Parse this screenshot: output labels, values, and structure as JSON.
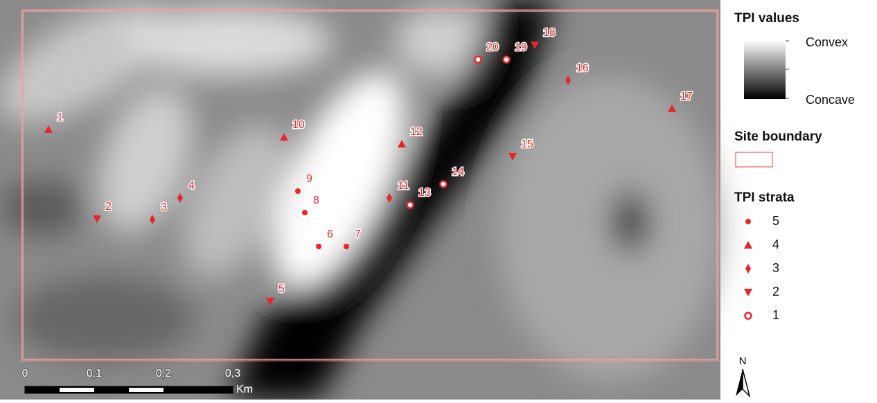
{
  "legend": {
    "tpi_values": {
      "title": "TPI values",
      "high": "Convex",
      "low": "Concave"
    },
    "site_boundary": {
      "title": "Site boundary"
    },
    "strata": {
      "title": "TPI strata",
      "items": [
        "5",
        "4",
        "3",
        "2",
        "1"
      ]
    }
  },
  "sites": [
    {
      "label": "1",
      "stratum": 4
    },
    {
      "label": "2",
      "stratum": 2
    },
    {
      "label": "3",
      "stratum": 3
    },
    {
      "label": "4",
      "stratum": 3
    },
    {
      "label": "5",
      "stratum": 2
    },
    {
      "label": "6",
      "stratum": 5
    },
    {
      "label": "7",
      "stratum": 5
    },
    {
      "label": "8",
      "stratum": 5
    },
    {
      "label": "9",
      "stratum": 5
    },
    {
      "label": "10",
      "stratum": 4
    },
    {
      "label": "11",
      "stratum": 3
    },
    {
      "label": "12",
      "stratum": 4
    },
    {
      "label": "13",
      "stratum": 1
    },
    {
      "label": "14",
      "stratum": 1
    },
    {
      "label": "15",
      "stratum": 2
    },
    {
      "label": "16",
      "stratum": 3
    },
    {
      "label": "17",
      "stratum": 4
    },
    {
      "label": "18",
      "stratum": 2
    },
    {
      "label": "19",
      "stratum": 1
    },
    {
      "label": "20",
      "stratum": 1
    }
  ],
  "scale_bar": {
    "ticks": [
      "0",
      "0,1",
      "0,2",
      "0,3"
    ],
    "unit": "Km"
  },
  "north": "N"
}
